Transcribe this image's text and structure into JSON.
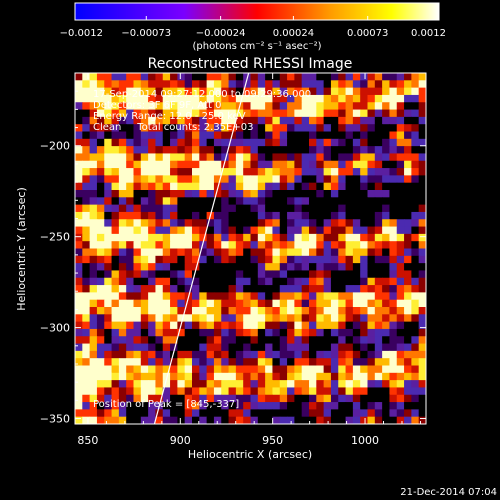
{
  "chart_data": {
    "type": "heatmap",
    "title": "Reconstructed RHESSI Image",
    "xlabel": "Heliocentric X (arcsec)",
    "ylabel": "Heliocentric Y (arcsec)",
    "xlim": [
      843,
      1033
    ],
    "ylim": [
      -353,
      -160
    ],
    "x_ticks": [
      850,
      900,
      950,
      1000
    ],
    "y_ticks": [
      -200,
      -250,
      -300,
      -350
    ],
    "x_tick_labels": [
      "850",
      "900",
      "950",
      "1000"
    ],
    "y_tick_labels": [
      "−200",
      "−250",
      "−300",
      "−350"
    ],
    "colorbar": {
      "range": [
        -0.0012,
        0.0012
      ],
      "ticks": [
        -0.0012,
        -0.00073,
        -0.00024,
        0.00024,
        0.00073,
        0.0012
      ],
      "tick_labels": [
        "−0.0012",
        "−0.00073",
        "−0.00024",
        "0.00024",
        "0.00073",
        "0.0012"
      ],
      "unit_label": "(photons cm⁻² s⁻¹ asec⁻²)",
      "colors": [
        "#0000ff",
        "#7a00ff",
        "#ff0000",
        "#ff9a00",
        "#ffff00",
        "#ffffff"
      ]
    },
    "info": [
      "17-Sep-2014 09:27:12.000 to 09:29:36.000",
      "Detectors: 3F 6F 9F, Att 0",
      "Energy Range: 12.0 - 25.0 keV",
      "Clean     Total counts: 2.35E+03"
    ],
    "peak_label": "Position of Peak = [845,-337]",
    "peak_position": [
      845,
      -337
    ],
    "limb_line": [
      [
        886,
        -353
      ],
      [
        937,
        -160
      ]
    ],
    "grid_cells": 48,
    "grid": false
  },
  "footer": {
    "timestamp": "21-Dec-2014 07:04"
  }
}
